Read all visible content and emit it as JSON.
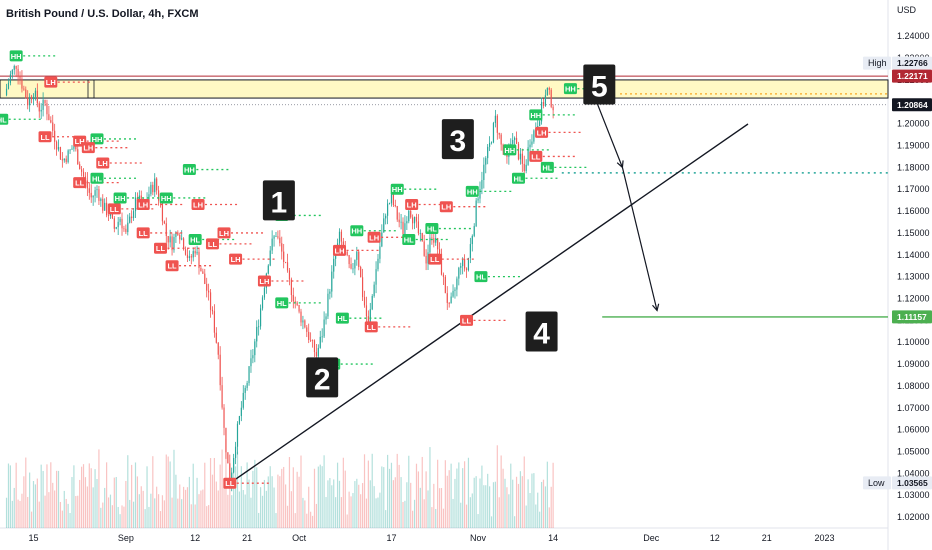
{
  "chart_data": {
    "type": "candlestick",
    "title": "British Pound / U.S. Dollar, 4h, FXCM",
    "currency": "USD",
    "y_ticks": [
      "1.24000",
      "1.23000",
      "1.22000",
      "1.21000",
      "1.20000",
      "1.19000",
      "1.18000",
      "1.17000",
      "1.16000",
      "1.15000",
      "1.14000",
      "1.13000",
      "1.12000",
      "1.11000",
      "1.10000",
      "1.09000",
      "1.08000",
      "1.07000",
      "1.06000",
      "1.05000",
      "1.04000",
      "1.03000",
      "1.02000"
    ],
    "y_tick_values": [
      1.24,
      1.23,
      1.22,
      1.21,
      1.2,
      1.19,
      1.18,
      1.17,
      1.16,
      1.15,
      1.14,
      1.13,
      1.12,
      1.11,
      1.1,
      1.09,
      1.08,
      1.07,
      1.06,
      1.05,
      1.04,
      1.03,
      1.02
    ],
    "ylim": [
      1.015,
      1.2465
    ],
    "x_ticks": [
      {
        "label": "15",
        "t": 15
      },
      {
        "label": "Sep",
        "t": 31
      },
      {
        "label": "12",
        "t": 43
      },
      {
        "label": "21",
        "t": 52
      },
      {
        "label": "Oct",
        "t": 61
      },
      {
        "label": "17",
        "t": 77
      },
      {
        "label": "Nov",
        "t": 92
      },
      {
        "label": "14",
        "t": 105
      },
      {
        "label": "Dec",
        "t": 122
      },
      {
        "label": "12",
        "t": 133
      },
      {
        "label": "21",
        "t": 142
      },
      {
        "label": "2023",
        "t": 152
      }
    ],
    "xlim": [
      9.2,
      163
    ],
    "price_path": [
      [
        10,
        1.213
      ],
      [
        11,
        1.222
      ],
      [
        12,
        1.227
      ],
      [
        13,
        1.218
      ],
      [
        14,
        1.21
      ],
      [
        15,
        1.215
      ],
      [
        16,
        1.207
      ],
      [
        17,
        1.209
      ],
      [
        18,
        1.2
      ],
      [
        19,
        1.191
      ],
      [
        20,
        1.183
      ],
      [
        21,
        1.186
      ],
      [
        22,
        1.19
      ],
      [
        23,
        1.181
      ],
      [
        24,
        1.173
      ],
      [
        25,
        1.166
      ],
      [
        26,
        1.17
      ],
      [
        27,
        1.162
      ],
      [
        28,
        1.159
      ],
      [
        29,
        1.152
      ],
      [
        30,
        1.157
      ],
      [
        31,
        1.149
      ],
      [
        32,
        1.159
      ],
      [
        33,
        1.166
      ],
      [
        34,
        1.161
      ],
      [
        35,
        1.168
      ],
      [
        36,
        1.173
      ],
      [
        37,
        1.163
      ],
      [
        38,
        1.149
      ],
      [
        39,
        1.145
      ],
      [
        40,
        1.152
      ],
      [
        41,
        1.145
      ],
      [
        42,
        1.137
      ],
      [
        43,
        1.143
      ],
      [
        44,
        1.133
      ],
      [
        45,
        1.124
      ],
      [
        46,
        1.112
      ],
      [
        47,
        1.095
      ],
      [
        48,
        1.06
      ],
      [
        49,
        1.0355
      ],
      [
        50,
        1.055
      ],
      [
        51,
        1.07
      ],
      [
        52,
        1.082
      ],
      [
        53,
        1.095
      ],
      [
        54,
        1.11
      ],
      [
        55,
        1.127
      ],
      [
        56,
        1.143
      ],
      [
        57,
        1.15
      ],
      [
        58,
        1.141
      ],
      [
        59,
        1.13
      ],
      [
        60,
        1.121
      ],
      [
        61,
        1.113
      ],
      [
        62,
        1.108
      ],
      [
        63,
        1.1
      ],
      [
        64,
        1.094
      ],
      [
        65,
        1.104
      ],
      [
        66,
        1.12
      ],
      [
        67,
        1.136
      ],
      [
        68,
        1.148
      ],
      [
        69,
        1.14
      ],
      [
        70,
        1.131
      ],
      [
        71,
        1.143
      ],
      [
        72,
        1.122
      ],
      [
        73,
        1.107
      ],
      [
        74,
        1.128
      ],
      [
        75,
        1.144
      ],
      [
        76,
        1.16
      ],
      [
        77,
        1.166
      ],
      [
        78,
        1.157
      ],
      [
        79,
        1.151
      ],
      [
        80,
        1.162
      ],
      [
        81,
        1.155
      ],
      [
        82,
        1.147
      ],
      [
        83,
        1.138
      ],
      [
        84,
        1.15
      ],
      [
        85,
        1.143
      ],
      [
        86,
        1.128
      ],
      [
        87,
        1.115
      ],
      [
        88,
        1.124
      ],
      [
        89,
        1.137
      ],
      [
        90,
        1.133
      ],
      [
        91,
        1.15
      ],
      [
        92,
        1.168
      ],
      [
        93,
        1.18
      ],
      [
        94,
        1.19
      ],
      [
        95,
        1.202
      ],
      [
        96,
        1.19
      ],
      [
        97,
        1.183
      ],
      [
        98,
        1.195
      ],
      [
        99,
        1.186
      ],
      [
        100,
        1.178
      ],
      [
        101,
        1.193
      ],
      [
        102,
        1.198
      ],
      [
        103,
        1.207
      ],
      [
        104,
        1.215
      ],
      [
        105,
        1.208
      ]
    ],
    "volume_max": 100,
    "annotations": {
      "high_label": "High",
      "high_value": "1.22766",
      "resistance_value": "1.22171",
      "current_value": "1.20864",
      "target_value": "1.11157",
      "low_label": "Low",
      "low_value": "1.03565",
      "wave_labels": [
        {
          "text": "1",
          "t": 57.5,
          "price": 1.164
        },
        {
          "text": "2",
          "t": 65,
          "price": 1.083
        },
        {
          "text": "3",
          "t": 88.5,
          "price": 1.192
        },
        {
          "text": "4",
          "t": 103,
          "price": 1.104
        },
        {
          "text": "5",
          "t": 113,
          "price": 1.217
        }
      ],
      "pivots": [
        {
          "text": "HH",
          "t": 12,
          "price": 1.231,
          "type": "up"
        },
        {
          "text": "LH",
          "t": 18,
          "price": 1.219,
          "type": "down"
        },
        {
          "text": "HL",
          "t": 9.5,
          "price": 1.202,
          "type": "up"
        },
        {
          "text": "LL",
          "t": 17,
          "price": 1.194,
          "type": "down"
        },
        {
          "text": "LH",
          "t": 23,
          "price": 1.192,
          "type": "down"
        },
        {
          "text": "HH",
          "t": 26,
          "price": 1.193,
          "type": "up"
        },
        {
          "text": "LH",
          "t": 24.5,
          "price": 1.189,
          "type": "down"
        },
        {
          "text": "LL",
          "t": 23,
          "price": 1.173,
          "type": "down"
        },
        {
          "text": "HL",
          "t": 26,
          "price": 1.175,
          "type": "up"
        },
        {
          "text": "LH",
          "t": 27,
          "price": 1.182,
          "type": "down"
        },
        {
          "text": "LL",
          "t": 29,
          "price": 1.161,
          "type": "down"
        },
        {
          "text": "HH",
          "t": 30,
          "price": 1.166,
          "type": "up"
        },
        {
          "text": "LH",
          "t": 34,
          "price": 1.163,
          "type": "down"
        },
        {
          "text": "HH",
          "t": 38,
          "price": 1.166,
          "type": "up"
        },
        {
          "text": "LL",
          "t": 34,
          "price": 1.15,
          "type": "down"
        },
        {
          "text": "LL",
          "t": 37,
          "price": 1.143,
          "type": "down"
        },
        {
          "text": "LL",
          "t": 39,
          "price": 1.135,
          "type": "down"
        },
        {
          "text": "HH",
          "t": 42,
          "price": 1.179,
          "type": "up"
        },
        {
          "text": "LH",
          "t": 43.5,
          "price": 1.163,
          "type": "down"
        },
        {
          "text": "HL",
          "t": 43,
          "price": 1.147,
          "type": "up"
        },
        {
          "text": "LH",
          "t": 48,
          "price": 1.15,
          "type": "down"
        },
        {
          "text": "LL",
          "t": 46,
          "price": 1.145,
          "type": "down"
        },
        {
          "text": "LH",
          "t": 50,
          "price": 1.138,
          "type": "down"
        },
        {
          "text": "LL",
          "t": 49,
          "price": 1.0355,
          "type": "down"
        },
        {
          "text": "HH",
          "t": 58,
          "price": 1.158,
          "type": "up"
        },
        {
          "text": "LH",
          "t": 55,
          "price": 1.128,
          "type": "down"
        },
        {
          "text": "HL",
          "t": 58,
          "price": 1.118,
          "type": "up"
        },
        {
          "text": "HL",
          "t": 67,
          "price": 1.09,
          "type": "up"
        },
        {
          "text": "HL",
          "t": 68.5,
          "price": 1.111,
          "type": "up"
        },
        {
          "text": "LH",
          "t": 68,
          "price": 1.142,
          "type": "down"
        },
        {
          "text": "HH",
          "t": 71,
          "price": 1.151,
          "type": "up"
        },
        {
          "text": "LH",
          "t": 74,
          "price": 1.148,
          "type": "down"
        },
        {
          "text": "LL",
          "t": 73.5,
          "price": 1.107,
          "type": "down"
        },
        {
          "text": "HH",
          "t": 78,
          "price": 1.17,
          "type": "up"
        },
        {
          "text": "LH",
          "t": 80.5,
          "price": 1.163,
          "type": "down"
        },
        {
          "text": "HL",
          "t": 80,
          "price": 1.147,
          "type": "up"
        },
        {
          "text": "HL",
          "t": 84,
          "price": 1.152,
          "type": "up"
        },
        {
          "text": "LL",
          "t": 84.5,
          "price": 1.138,
          "type": "down"
        },
        {
          "text": "LH",
          "t": 86.5,
          "price": 1.162,
          "type": "down"
        },
        {
          "text": "LL",
          "t": 90,
          "price": 1.11,
          "type": "down"
        },
        {
          "text": "HH",
          "t": 91,
          "price": 1.169,
          "type": "up"
        },
        {
          "text": "HL",
          "t": 92.5,
          "price": 1.13,
          "type": "up"
        },
        {
          "text": "HH",
          "t": 97.5,
          "price": 1.188,
          "type": "up"
        },
        {
          "text": "HH",
          "t": 102,
          "price": 1.204,
          "type": "up"
        },
        {
          "text": "HL",
          "t": 99,
          "price": 1.175,
          "type": "up"
        },
        {
          "text": "LH",
          "t": 103,
          "price": 1.196,
          "type": "down"
        },
        {
          "text": "LL",
          "t": 102,
          "price": 1.185,
          "type": "down"
        },
        {
          "text": "HL",
          "t": 104,
          "price": 1.18,
          "type": "up"
        },
        {
          "text": "HH",
          "t": 108,
          "price": 1.216,
          "type": "up"
        }
      ]
    }
  }
}
